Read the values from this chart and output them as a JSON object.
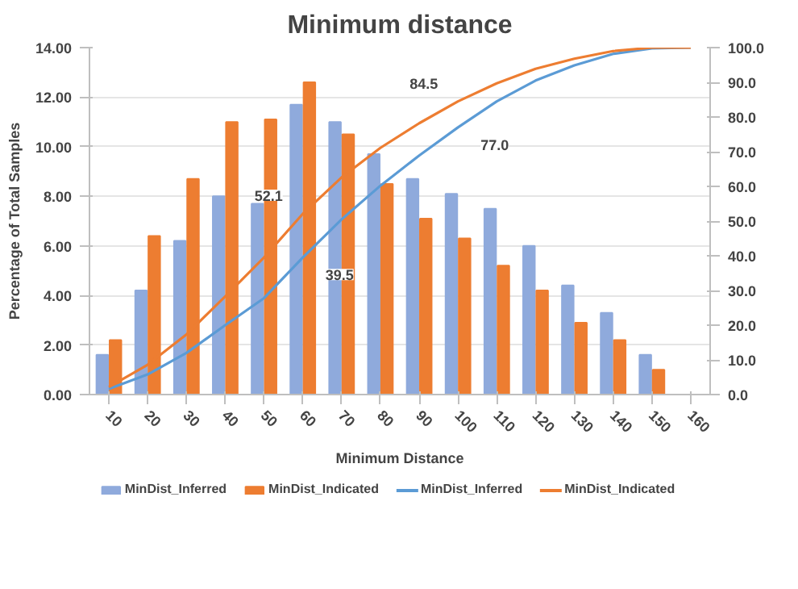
{
  "chart_data": {
    "type": "bar",
    "title": "Minimum distance",
    "xlabel": "Minimum Distance",
    "ylabel": "Percentage of Total Samples",
    "categories": [
      "10",
      "20",
      "30",
      "40",
      "50",
      "60",
      "70",
      "80",
      "90",
      "100",
      "110",
      "120",
      "130",
      "140",
      "150",
      "160"
    ],
    "ylim": [
      0,
      14
    ],
    "yticks": [
      {
        "value": 0,
        "label": "0.00"
      },
      {
        "value": 2,
        "label": "2.00"
      },
      {
        "value": 4,
        "label": "4.00"
      },
      {
        "value": 6,
        "label": "6.00"
      },
      {
        "value": 8,
        "label": "8.00"
      },
      {
        "value": 10,
        "label": "10.00"
      },
      {
        "value": 12,
        "label": "12.00"
      },
      {
        "value": 14,
        "label": "14.00"
      }
    ],
    "y2lim": [
      0,
      100
    ],
    "y2ticks": [
      {
        "value": 0,
        "label": "0.0"
      },
      {
        "value": 10,
        "label": "10.0"
      },
      {
        "value": 20,
        "label": "20.0"
      },
      {
        "value": 30,
        "label": "30.0"
      },
      {
        "value": 40,
        "label": "40.0"
      },
      {
        "value": 50,
        "label": "50.0"
      },
      {
        "value": 60,
        "label": "60.0"
      },
      {
        "value": 70,
        "label": "70.0"
      },
      {
        "value": 80,
        "label": "80.0"
      },
      {
        "value": 90,
        "label": "90.0"
      },
      {
        "value": 100,
        "label": "100.0"
      }
    ],
    "grid": "y",
    "legend": "bottom",
    "marker": "none",
    "line_style": "solid",
    "series": [
      {
        "name": "MinDist_Inferred",
        "color": "#8faadc",
        "values": [
          1.6,
          4.2,
          6.2,
          8.0,
          7.7,
          11.7,
          11.0,
          9.7,
          8.7,
          8.1,
          7.5,
          6.0,
          4.4,
          3.3,
          1.6,
          0
        ]
      },
      {
        "name": "MinDist_Indicated",
        "color": "#ed7d31",
        "values": [
          2.2,
          6.4,
          8.7,
          11.0,
          11.1,
          12.6,
          10.5,
          8.5,
          7.1,
          6.3,
          5.2,
          4.2,
          2.9,
          2.2,
          1.0,
          0
        ]
      },
      {
        "name": "MinDist_Inferred",
        "type": "line",
        "axis": "y2",
        "color": "#5b9bd5",
        "values": [
          1.6,
          5.8,
          12.0,
          20.0,
          27.8,
          39.5,
          50.5,
          60.2,
          68.9,
          77.0,
          84.5,
          90.5,
          94.9,
          98.2,
          99.8,
          100
        ],
        "value_labels": [
          null,
          null,
          null,
          null,
          null,
          "39.5",
          null,
          null,
          null,
          "77.0",
          null,
          null,
          null,
          null,
          null,
          null
        ]
      },
      {
        "name": "MinDist_Indicated",
        "type": "line",
        "axis": "y2",
        "color": "#ed7d31",
        "values": [
          2.2,
          8.6,
          17.3,
          28.3,
          39.5,
          52.1,
          62.6,
          71.1,
          78.2,
          84.5,
          89.7,
          93.9,
          96.8,
          99.0,
          100,
          100
        ],
        "value_labels": [
          null,
          null,
          null,
          null,
          null,
          "52.1",
          null,
          null,
          null,
          "84.5",
          null,
          null,
          null,
          null,
          null,
          null
        ]
      }
    ]
  }
}
